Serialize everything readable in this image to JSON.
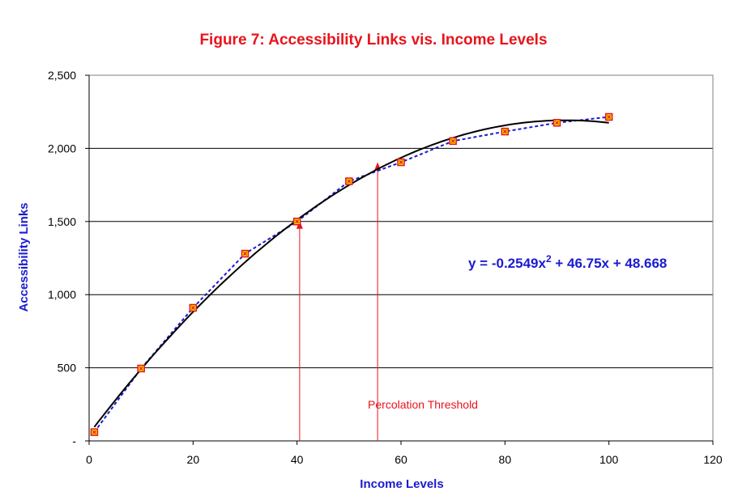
{
  "chart_data": {
    "type": "scatter",
    "title": "Figure 7: Accessibility Links vis. Income Levels",
    "xlabel": "Income Levels",
    "ylabel": "Accessibility Links",
    "xlim": [
      0,
      120
    ],
    "ylim": [
      0,
      2500
    ],
    "x_ticks": [
      "0",
      "20",
      "40",
      "60",
      "80",
      "100",
      "120"
    ],
    "x_tick_values": [
      0,
      20,
      40,
      60,
      80,
      100,
      120
    ],
    "y_ticks": [
      "-",
      "500",
      "1,000",
      "1,500",
      "2,000",
      "2,500"
    ],
    "y_tick_values": [
      0,
      500,
      1000,
      1500,
      2000,
      2500
    ],
    "grid": "horizontal",
    "series": [
      {
        "x": [
          1,
          10,
          20,
          30,
          40,
          50,
          60,
          70,
          80,
          90,
          100
        ],
        "y": [
          60,
          495,
          910,
          1280,
          1500,
          1775,
          1905,
          2050,
          2115,
          2175,
          2215
        ],
        "marker": "square",
        "color": "#f0d800",
        "marker_edge": "#e8141c",
        "connector": "dashed",
        "connector_color": "#1a1ad0"
      }
    ],
    "trendline": {
      "equation_prefix": "y = -0.2549x",
      "equation_sup": "2",
      "equation_suffix": " + 46.75x + 48.668",
      "a": -0.2549,
      "b": 46.75,
      "c": 48.668,
      "x_range": [
        1,
        100
      ],
      "color": "#000000"
    },
    "annotations": {
      "label": "Percolation Threshold",
      "color": "#e8141c",
      "arrows": [
        {
          "x": 40.5,
          "y_top": 1500
        },
        {
          "x": 55.5,
          "y_top": 1900
        }
      ]
    }
  }
}
